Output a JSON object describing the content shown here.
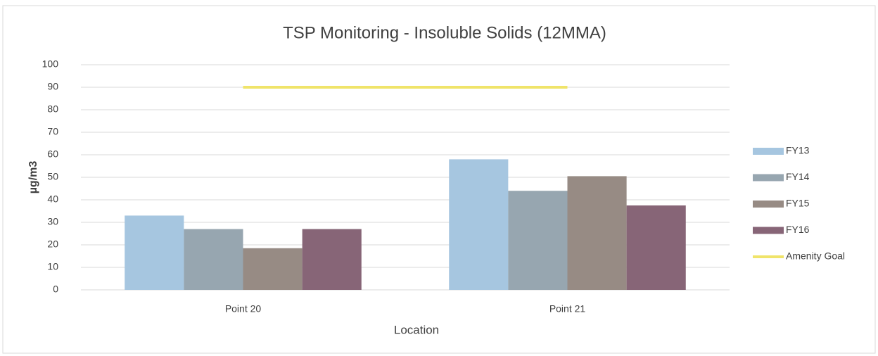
{
  "chart_data": {
    "type": "bar",
    "title": "TSP Monitoring - Insoluble Solids (12MMA)",
    "x_label": "Location",
    "y_label": "µg/m3",
    "categories": [
      "Point 20",
      "Point 21"
    ],
    "series": [
      {
        "name": "FY13",
        "color": "#a6c6e0",
        "values": [
          33,
          58
        ]
      },
      {
        "name": "FY14",
        "color": "#97a6b0",
        "values": [
          27,
          44
        ]
      },
      {
        "name": "FY15",
        "color": "#978b84",
        "values": [
          18.5,
          50.5
        ]
      },
      {
        "name": "FY16",
        "color": "#876577",
        "values": [
          27,
          37.5
        ]
      },
      {
        "name": "Amenity Goal",
        "color": "#f0e46a",
        "type": "line",
        "values": [
          90,
          90
        ]
      }
    ],
    "ylim": [
      0,
      100
    ],
    "yticks": [
      0,
      10,
      20,
      30,
      40,
      50,
      60,
      70,
      80,
      90,
      100
    ],
    "grid": true,
    "legend": "right"
  }
}
